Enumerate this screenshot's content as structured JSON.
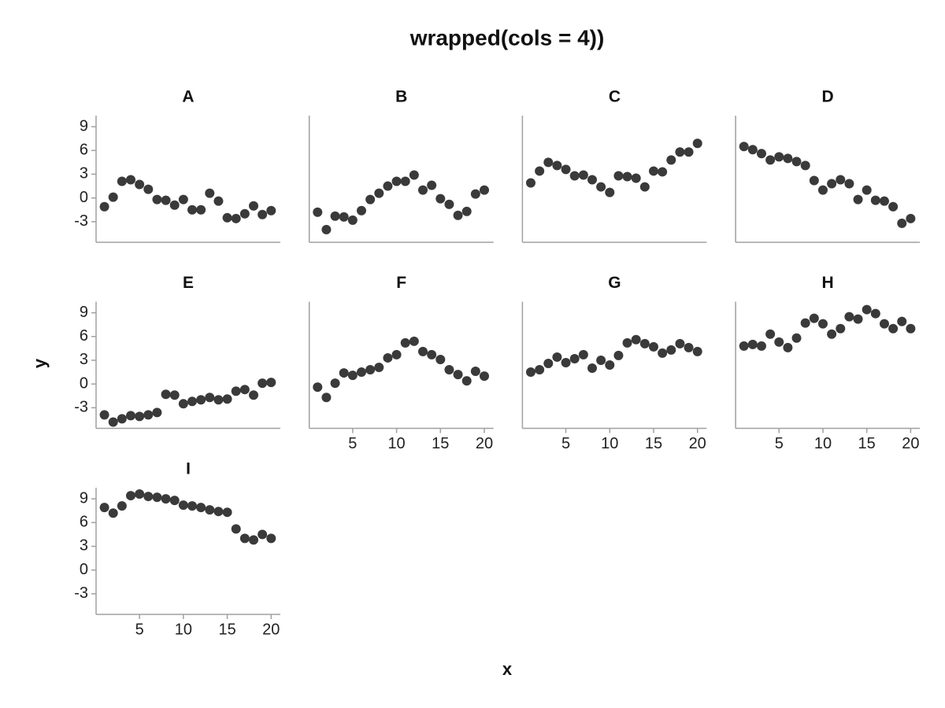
{
  "chart_data": {
    "type": "scatter",
    "title": "wrapped(cols = 4))",
    "xlabel": "x",
    "ylabel": "y",
    "cols": 4,
    "color": "#3a3a3a",
    "xlim": [
      0.05,
      21.05
    ],
    "ylim": [
      -5.6,
      10.4
    ],
    "xticks": [
      5,
      10,
      15,
      20
    ],
    "yticks": [
      -3,
      0,
      3,
      6,
      9
    ],
    "x": [
      1,
      2,
      3,
      4,
      5,
      6,
      7,
      8,
      9,
      10,
      11,
      12,
      13,
      14,
      15,
      16,
      17,
      18,
      19,
      20
    ],
    "panels": [
      {
        "name": "A",
        "values": [
          -1.1,
          0.1,
          2.1,
          2.3,
          1.7,
          1.1,
          -0.2,
          -0.3,
          -0.9,
          -0.2,
          -1.5,
          -1.5,
          0.6,
          -0.4,
          -2.5,
          -2.6,
          -2.0,
          -1.0,
          -2.1,
          -1.6
        ]
      },
      {
        "name": "B",
        "values": [
          -1.8,
          -4.0,
          -2.3,
          -2.4,
          -2.8,
          -1.6,
          -0.2,
          0.6,
          1.5,
          2.1,
          2.1,
          2.9,
          1.0,
          1.6,
          -0.1,
          -0.8,
          -2.2,
          -1.7,
          0.5,
          1.0
        ]
      },
      {
        "name": "C",
        "values": [
          1.9,
          3.4,
          4.5,
          4.1,
          3.6,
          2.8,
          2.9,
          2.3,
          1.4,
          0.7,
          2.8,
          2.7,
          2.5,
          1.4,
          3.4,
          3.3,
          4.8,
          5.8,
          5.8,
          6.9
        ]
      },
      {
        "name": "D",
        "values": [
          6.5,
          6.1,
          5.6,
          4.8,
          5.2,
          5.0,
          4.6,
          4.1,
          2.2,
          1.0,
          1.8,
          2.3,
          1.8,
          -0.2,
          1.0,
          -0.3,
          -0.4,
          -1.1,
          -3.2,
          -2.6
        ]
      },
      {
        "name": "E",
        "values": [
          -3.9,
          -4.8,
          -4.4,
          -4.0,
          -4.1,
          -3.9,
          -3.6,
          -1.3,
          -1.4,
          -2.5,
          -2.2,
          -2.0,
          -1.7,
          -2.0,
          -1.9,
          -0.9,
          -0.7,
          -1.4,
          0.1,
          0.2
        ]
      },
      {
        "name": "F",
        "values": [
          -0.4,
          -1.7,
          0.1,
          1.4,
          1.1,
          1.5,
          1.8,
          2.1,
          3.3,
          3.7,
          5.2,
          5.4,
          4.1,
          3.7,
          3.1,
          1.8,
          1.2,
          0.4,
          1.6,
          1.0
        ]
      },
      {
        "name": "G",
        "values": [
          1.5,
          1.8,
          2.6,
          3.4,
          2.7,
          3.2,
          3.7,
          2.0,
          3.0,
          2.4,
          3.6,
          5.2,
          5.6,
          5.1,
          4.7,
          3.9,
          4.3,
          5.1,
          4.6,
          4.1
        ]
      },
      {
        "name": "H",
        "values": [
          4.8,
          5.0,
          4.8,
          6.3,
          5.3,
          4.6,
          5.8,
          7.7,
          8.3,
          7.6,
          6.3,
          7.0,
          8.5,
          8.2,
          9.4,
          8.9,
          7.6,
          7.0,
          7.9,
          7.0
        ]
      },
      {
        "name": "I",
        "values": [
          7.9,
          7.2,
          8.1,
          9.4,
          9.6,
          9.3,
          9.2,
          9.0,
          8.8,
          8.2,
          8.1,
          7.9,
          7.6,
          7.4,
          7.3,
          5.2,
          4.0,
          3.8,
          4.5,
          4.0
        ]
      }
    ]
  }
}
